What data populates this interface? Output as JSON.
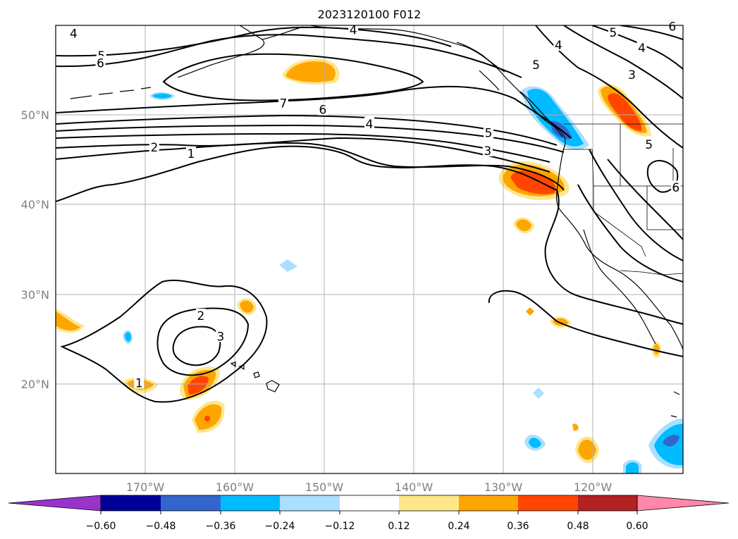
{
  "title": "2023120100 F012",
  "map": {
    "lon_range": [
      -180,
      -110
    ],
    "lat_range": [
      10,
      60
    ],
    "gridlines": true,
    "lon_ticks": [
      {
        "value": -170,
        "label": "170°W"
      },
      {
        "value": -160,
        "label": "160°W"
      },
      {
        "value": -150,
        "label": "150°W"
      },
      {
        "value": -140,
        "label": "140°W"
      },
      {
        "value": -130,
        "label": "130°W"
      },
      {
        "value": -120,
        "label": "120°W"
      }
    ],
    "lat_ticks": [
      {
        "value": 20,
        "label": "20°N"
      },
      {
        "value": 30,
        "label": "30°N"
      },
      {
        "value": 40,
        "label": "40°N"
      },
      {
        "value": 50,
        "label": "50°N"
      }
    ]
  },
  "colorbar": {
    "colors": [
      "#9933cc",
      "#000099",
      "#3366cc",
      "#00bbff",
      "#aadfff",
      "#ffffff",
      "#ffe68a",
      "#ffa500",
      "#ff4500",
      "#b22222",
      "#ff88aa"
    ],
    "ticks": [
      "−0.60",
      "−0.48",
      "−0.36",
      "−0.24",
      "−0.12",
      "0.12",
      "0.24",
      "0.36",
      "0.48",
      "0.60"
    ],
    "extend": "both"
  },
  "contour_labels": [
    {
      "text": "4",
      "lon": -178.0,
      "lat": 59.1
    },
    {
      "text": "5",
      "lon": -174.9,
      "lat": 56.6
    },
    {
      "text": "6",
      "lon": -175.0,
      "lat": 55.8
    },
    {
      "text": "4",
      "lon": -146.8,
      "lat": 59.5
    },
    {
      "text": "7",
      "lon": -154.6,
      "lat": 51.3
    },
    {
      "text": "6",
      "lon": -150.2,
      "lat": 50.6
    },
    {
      "text": "4",
      "lon": -145.0,
      "lat": 49.0
    },
    {
      "text": "5",
      "lon": -131.7,
      "lat": 48.0
    },
    {
      "text": "3",
      "lon": -131.8,
      "lat": 46.0
    },
    {
      "text": "2",
      "lon": -169.0,
      "lat": 46.4
    },
    {
      "text": "1",
      "lon": -164.9,
      "lat": 45.7
    },
    {
      "text": "5",
      "lon": -126.4,
      "lat": 55.6
    },
    {
      "text": "4",
      "lon": -123.9,
      "lat": 57.8
    },
    {
      "text": "5",
      "lon": -117.8,
      "lat": 59.2
    },
    {
      "text": "4",
      "lon": -114.6,
      "lat": 57.5
    },
    {
      "text": "3",
      "lon": -115.7,
      "lat": 54.5
    },
    {
      "text": "6",
      "lon": -111.2,
      "lat": 59.9
    },
    {
      "text": "5",
      "lon": -113.8,
      "lat": 46.7
    },
    {
      "text": "6",
      "lon": -110.8,
      "lat": 41.9
    },
    {
      "text": "2",
      "lon": -163.8,
      "lat": 27.6
    },
    {
      "text": "3",
      "lon": -161.6,
      "lat": 25.3
    },
    {
      "text": "1",
      "lon": -170.7,
      "lat": 20.1
    }
  ]
}
